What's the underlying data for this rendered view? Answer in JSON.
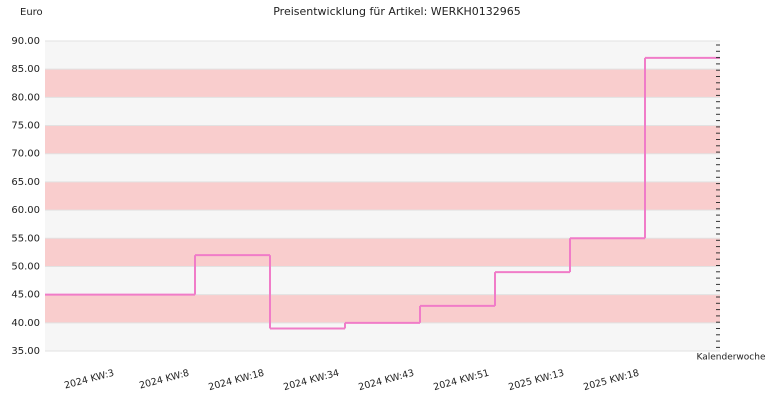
{
  "chart_data": {
    "type": "step",
    "title": "Preisentwicklung für Artikel: WERKH0132965",
    "y_label": "Euro",
    "x_label": "Kalenderwoche",
    "categories": [
      "2024 KW:3",
      "2024 KW:8",
      "2024 KW:18",
      "2024 KW:34",
      "2024 KW:43",
      "2024 KW:51",
      "2025 KW:13",
      "2025 KW:18"
    ],
    "series": [
      {
        "color": "#f07cc8",
        "values": [
          45,
          52,
          39,
          40,
          43,
          49,
          55,
          87
        ]
      }
    ],
    "ylim": [
      35,
      90
    ],
    "yticks": [
      {
        "value": 35,
        "label": "35.00"
      },
      {
        "value": 40,
        "label": "40.00"
      },
      {
        "value": 45,
        "label": "45.00"
      },
      {
        "value": 50,
        "label": "50.00"
      },
      {
        "value": 55,
        "label": "55.00"
      },
      {
        "value": 60,
        "label": "60.00"
      },
      {
        "value": 65,
        "label": "65.00"
      },
      {
        "value": 70,
        "label": "70.00"
      },
      {
        "value": 75,
        "label": "75.00"
      },
      {
        "value": 80,
        "label": "80.00"
      },
      {
        "value": 85,
        "label": "85.00"
      },
      {
        "value": 90,
        "label": "90.00"
      }
    ],
    "band_colors": [
      "#f6f6f6",
      "#f9cdcd"
    ],
    "grid": true
  }
}
